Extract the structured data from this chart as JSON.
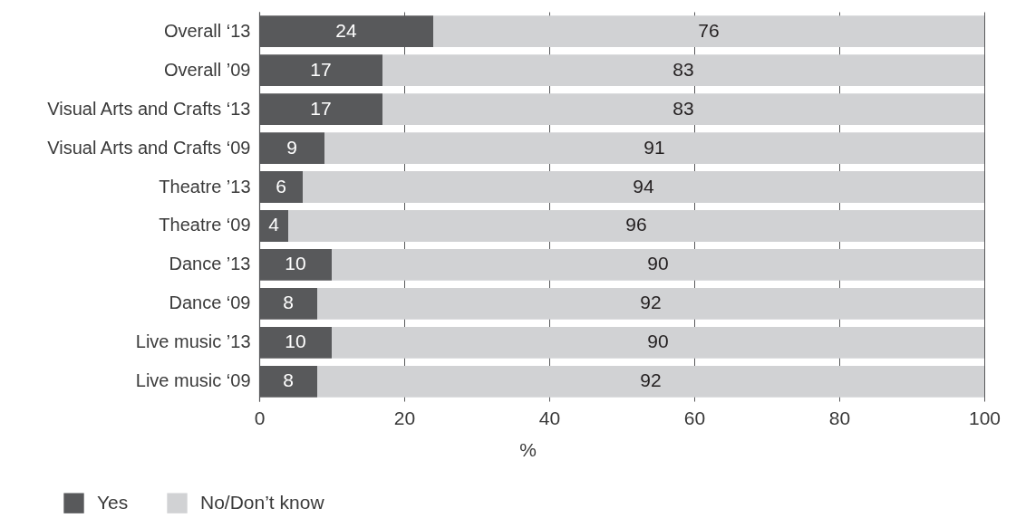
{
  "chart_data": {
    "type": "bar",
    "orientation": "horizontal",
    "stacked": true,
    "categories": [
      "Overall ‘13",
      "Overall ’09",
      "Visual Arts and Crafts ‘13",
      "Visual Arts and Crafts ‘09",
      "Theatre ’13",
      "Theatre ‘09",
      "Dance ’13",
      "Dance ‘09",
      "Live music ’13",
      "Live music ‘09"
    ],
    "series": [
      {
        "name": "Yes",
        "color": "#58595b",
        "values": [
          24,
          17,
          17,
          9,
          6,
          4,
          10,
          8,
          10,
          8
        ]
      },
      {
        "name": "No/Don’t know",
        "color": "#d1d2d4",
        "values": [
          76,
          83,
          83,
          91,
          94,
          96,
          90,
          92,
          90,
          92
        ]
      }
    ],
    "xlabel": "%",
    "xlim": [
      0,
      100
    ],
    "xticks": [
      0,
      20,
      40,
      60,
      80,
      100
    ],
    "grid": "x",
    "legend": "bottom left",
    "data_labels": true
  }
}
